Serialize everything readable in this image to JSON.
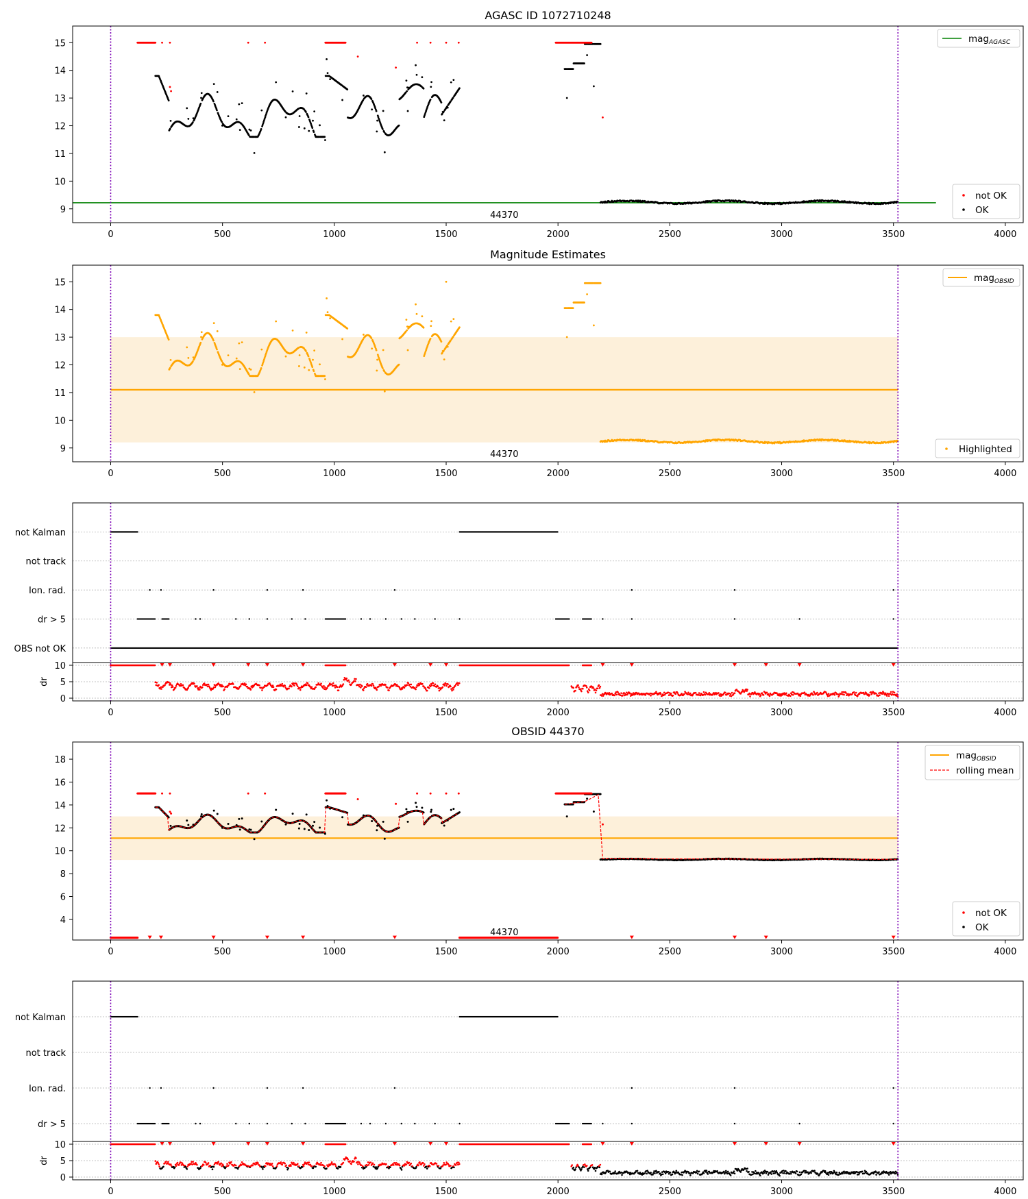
{
  "colors": {
    "ok": "#000000",
    "not_ok": "#ff0000",
    "agasc_line": "#008000",
    "obsid_line": "#ffa500",
    "band": "#fdf0da",
    "obsid_marker": "#7b00b4",
    "grid": "#b0b0b0"
  },
  "x_ticks": [
    "0",
    "500",
    "1000",
    "1500",
    "2000",
    "2500",
    "3000",
    "3500",
    "4000"
  ],
  "obsid_label": "44370",
  "chart_data": [
    {
      "type": "scatter",
      "title": "AGASC ID 1072710248",
      "xlim": [
        -170,
        4080
      ],
      "ylim": [
        8.5,
        15.6
      ],
      "y_ticks": [
        "9",
        "10",
        "11",
        "12",
        "13",
        "14",
        "15"
      ],
      "obsid_marker_x": [
        0,
        3520
      ],
      "legend_line": {
        "label": "mag",
        "sub": "AGASC",
        "position": "top-right"
      },
      "legend_points": {
        "items": [
          "not OK",
          "OK"
        ],
        "position": "bottom-right"
      },
      "agasc_mag": 9.22,
      "series": [
        {
          "name": "OK",
          "segments": [
            {
              "x": [
                200,
                1560
              ],
              "y_range": [
                11.5,
                14.6
              ]
            },
            {
              "x": [
                2030,
                2190
              ],
              "y_range": [
                12.3,
                15.0
              ]
            },
            {
              "x": [
                2190,
                3520
              ],
              "y_range": [
                9.15,
                9.3
              ]
            }
          ]
        },
        {
          "name": "not OK",
          "segments": [
            {
              "x": [
                120,
                200
              ],
              "y": 15.0
            },
            {
              "x": [
                960,
                1050
              ],
              "y": 15.0
            },
            {
              "x": [
                1990,
                2150
              ],
              "y": 15.0
            }
          ]
        }
      ]
    },
    {
      "type": "scatter",
      "title": "Magnitude Estimates",
      "xlim": [
        -170,
        4080
      ],
      "ylim": [
        8.5,
        15.6
      ],
      "y_ticks": [
        "9",
        "10",
        "11",
        "12",
        "13",
        "14",
        "15"
      ],
      "obsid_marker_x": [
        0,
        3520
      ],
      "legend_line": {
        "label": "mag",
        "sub": "OBSID",
        "position": "top-right"
      },
      "legend_points": {
        "items": [
          "Highlighted"
        ],
        "position": "bottom-right"
      },
      "obsid_mag": 11.1,
      "band": [
        9.2,
        13.0
      ],
      "series": [
        {
          "name": "Highlighted",
          "segments": [
            {
              "x": [
                200,
                1560
              ],
              "y_range": [
                11.5,
                14.6
              ]
            },
            {
              "x": [
                2030,
                2190
              ],
              "y_range": [
                12.3,
                15.0
              ]
            },
            {
              "x": [
                2190,
                3520
              ],
              "y_range": [
                9.15,
                9.3
              ]
            }
          ]
        }
      ]
    },
    {
      "type": "scatter",
      "title": "",
      "xlim": [
        -170,
        4080
      ],
      "categories": [
        "not Kalman",
        "not track",
        "Ion. rad.",
        "dr > 5",
        "OBS not OK"
      ],
      "flag_segments": {
        "not Kalman": [
          [
            0,
            120
          ],
          [
            1560,
            2000
          ]
        ],
        "not track": [],
        "Ion. rad.": [
          [
            175,
            175
          ],
          [
            225,
            225
          ],
          [
            460,
            460
          ],
          [
            700,
            700
          ],
          [
            860,
            860
          ],
          [
            1270,
            1270
          ],
          [
            2330,
            2330
          ],
          [
            2790,
            2790
          ],
          [
            3500,
            3500
          ]
        ],
        "dr > 5": [
          [
            120,
            200
          ],
          [
            230,
            260
          ],
          [
            960,
            1050
          ],
          [
            1990,
            2050
          ],
          [
            2110,
            2150
          ]
        ],
        "OBS not OK": [
          [
            0,
            3520
          ]
        ]
      },
      "dr": {
        "ylabel": "dr",
        "ylim": [
          0,
          10
        ],
        "y_ticks": [
          "0",
          "5",
          "10"
        ],
        "clip": 10
      }
    },
    {
      "type": "line",
      "title": "OBSID 44370",
      "xlim": [
        -170,
        4080
      ],
      "ylim": [
        2.2,
        19.5
      ],
      "y_ticks": [
        "4",
        "6",
        "8",
        "10",
        "12",
        "14",
        "16",
        "18"
      ],
      "obsid_marker_x": [
        0,
        3520
      ],
      "legend_line": {
        "items": [
          "mag",
          "rolling mean"
        ],
        "sub": "OBSID",
        "position": "top-right"
      },
      "legend_points": {
        "items": [
          "not OK",
          "OK"
        ],
        "position": "bottom-right"
      },
      "obsid_mag": 11.1,
      "band": [
        9.2,
        13.0
      ],
      "rolling_mean": {
        "x": [
          200,
          2190,
          2200,
          3520
        ],
        "y": [
          14.0,
          14.9,
          9.3,
          9.25
        ]
      },
      "not_ok_bottom": {
        "x": [
          [
            0,
            120
          ],
          [
            1560,
            2000
          ]
        ],
        "y": 2.4
      }
    },
    {
      "type": "scatter",
      "title": "",
      "xlim": [
        -170,
        4080
      ],
      "categories": [
        "not Kalman",
        "not track",
        "Ion. rad.",
        "dr > 5"
      ],
      "flag_segments": {
        "not Kalman": [
          [
            0,
            120
          ],
          [
            1560,
            2000
          ]
        ],
        "not track": [],
        "Ion. rad.": [
          [
            175,
            175
          ],
          [
            225,
            225
          ],
          [
            460,
            460
          ],
          [
            700,
            700
          ],
          [
            860,
            860
          ],
          [
            1270,
            1270
          ],
          [
            2330,
            2330
          ],
          [
            2790,
            2790
          ],
          [
            3500,
            3500
          ]
        ],
        "dr > 5": [
          [
            120,
            200
          ],
          [
            230,
            260
          ],
          [
            960,
            1050
          ],
          [
            1990,
            2050
          ],
          [
            2110,
            2150
          ]
        ]
      },
      "dr": {
        "ylabel": "dr",
        "ylim": [
          0,
          10
        ],
        "y_ticks": [
          "0",
          "5",
          "10"
        ],
        "clip": 10
      }
    }
  ]
}
